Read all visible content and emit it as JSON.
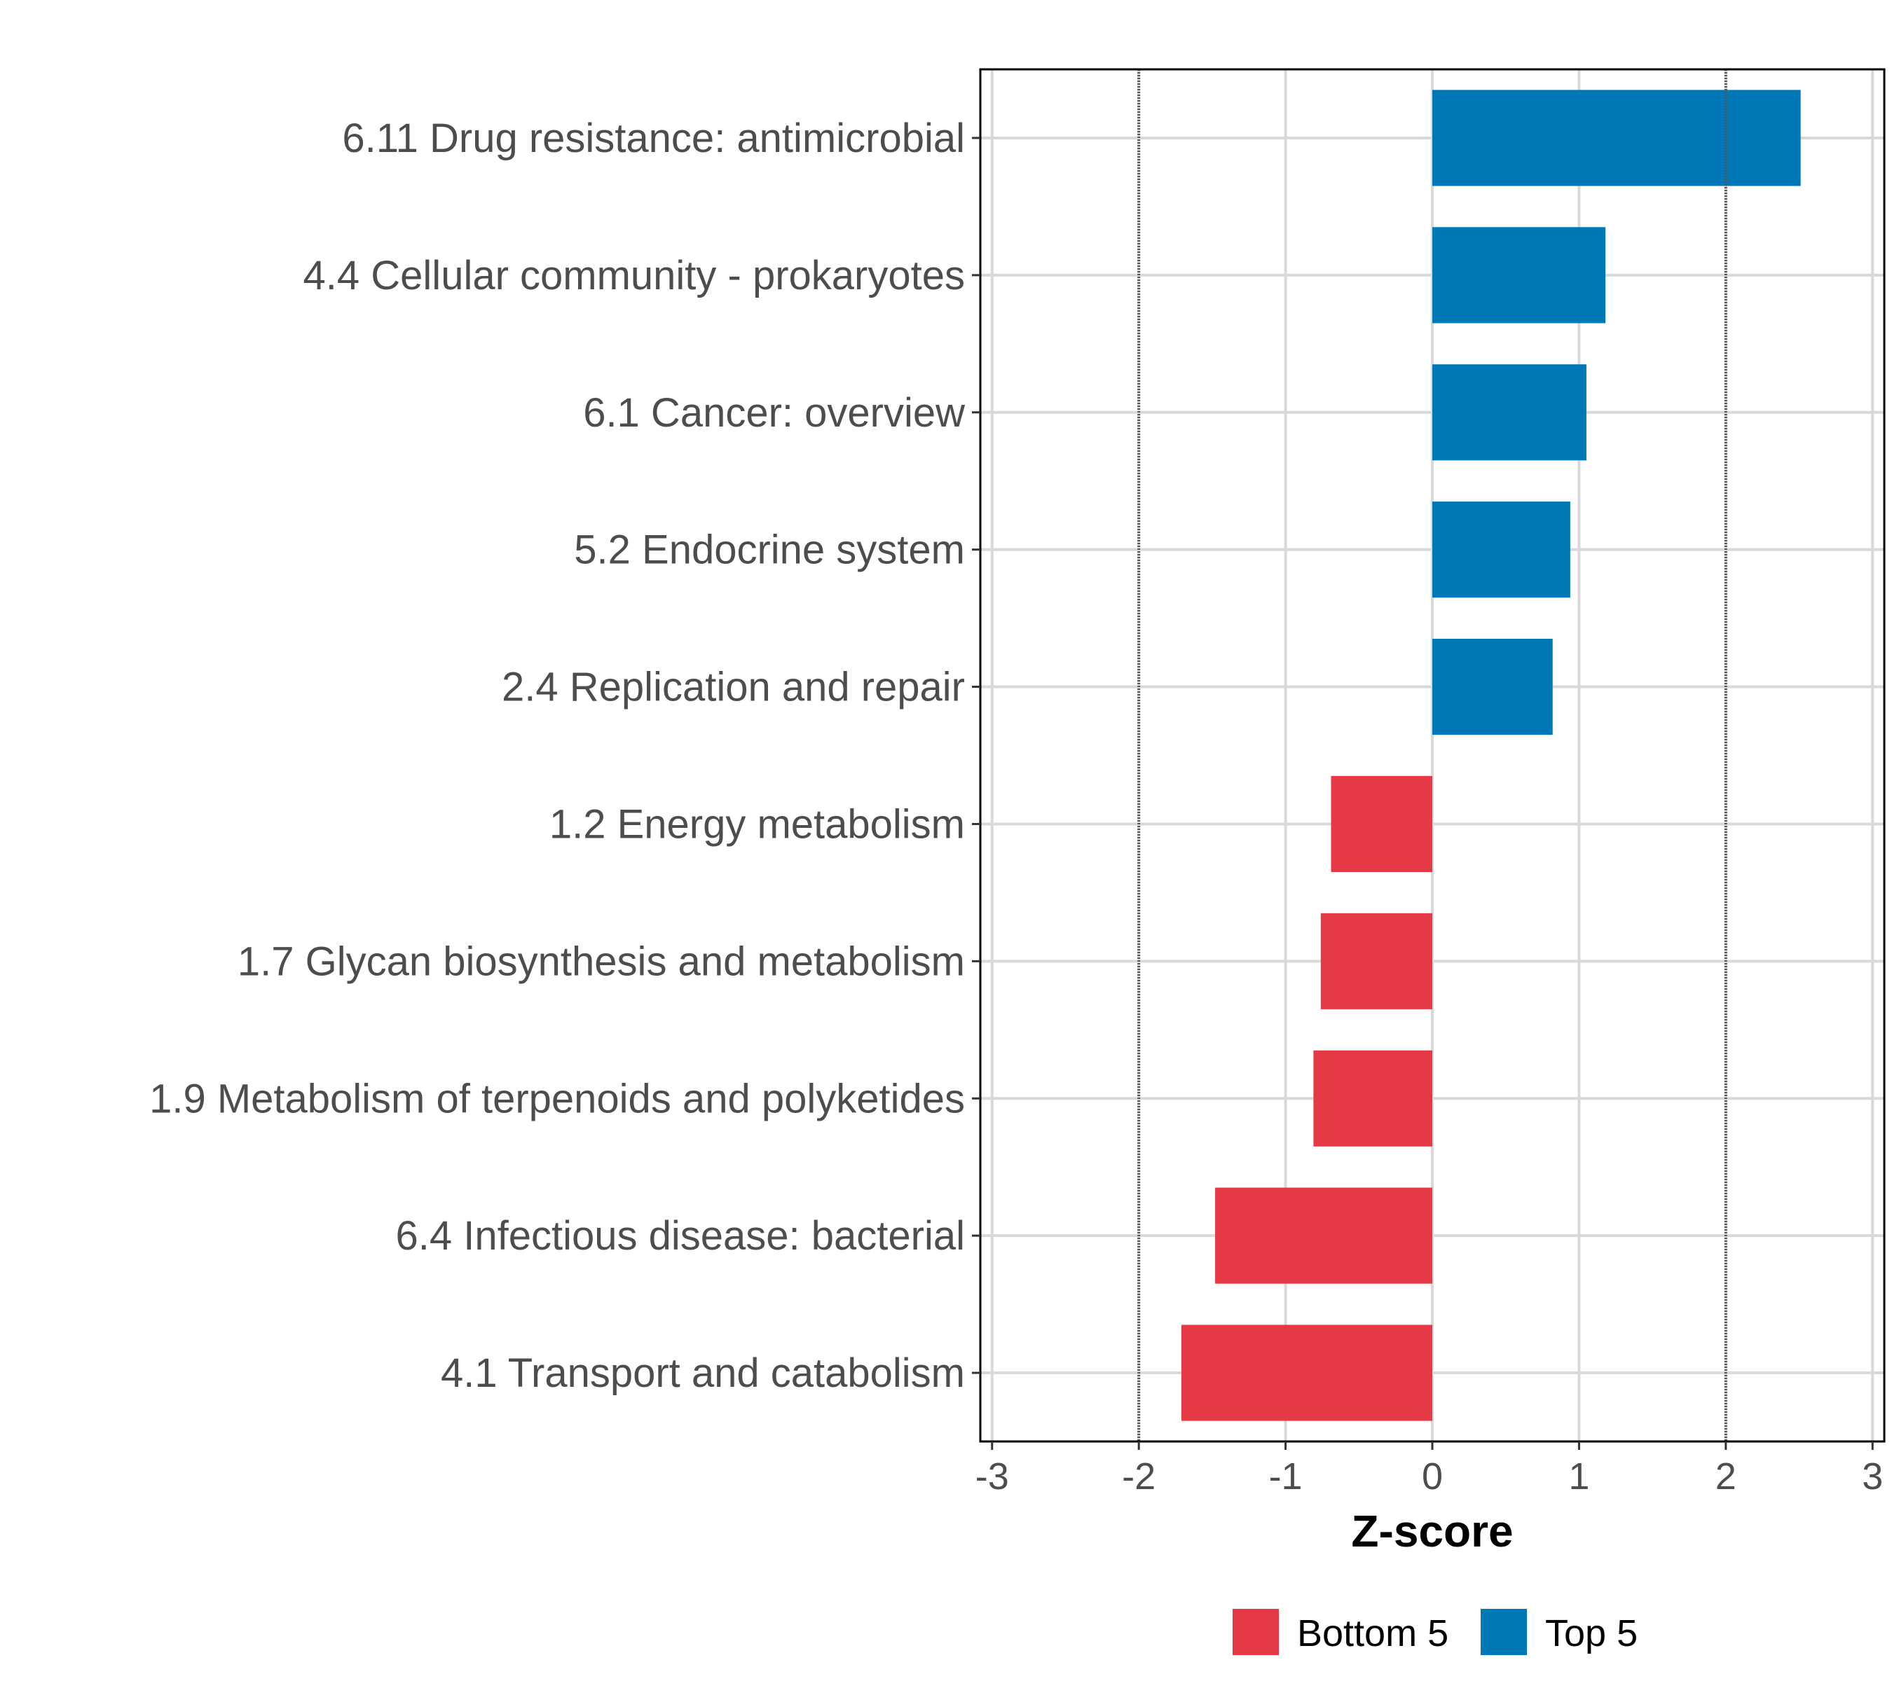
{
  "chart_data": {
    "type": "bar",
    "orientation": "horizontal",
    "xlabel": "Z-score",
    "ylabel": "",
    "xlim": [
      -3.08,
      3.08
    ],
    "xticks": [
      -3,
      -2,
      -1,
      0,
      1,
      2,
      3
    ],
    "xtick_labels": [
      "-3",
      "-2",
      "-1",
      "0",
      "1",
      "2",
      "3"
    ],
    "reference_lines": [
      -2,
      2
    ],
    "grid": true,
    "categories": [
      "6.11 Drug resistance: antimicrobial",
      "4.4 Cellular community - prokaryotes",
      "6.1 Cancer: overview",
      "5.2 Endocrine system",
      "2.4 Replication and repair",
      "1.2 Energy metabolism",
      "1.7 Glycan biosynthesis and metabolism",
      "1.9 Metabolism of terpenoids and polyketides",
      "6.4 Infectious disease: bacterial",
      "4.1 Transport and catabolism"
    ],
    "values": [
      2.51,
      1.18,
      1.05,
      0.94,
      0.82,
      -0.69,
      -0.76,
      -0.81,
      -1.48,
      -1.71
    ],
    "groups": [
      "Top 5",
      "Top 5",
      "Top 5",
      "Top 5",
      "Top 5",
      "Bottom 5",
      "Bottom 5",
      "Bottom 5",
      "Bottom 5",
      "Bottom 5"
    ],
    "legend": {
      "position": "bottom",
      "entries": [
        {
          "label": "Bottom 5",
          "color": "#E63946"
        },
        {
          "label": "Top 5",
          "color": "#0077B6"
        }
      ]
    }
  }
}
